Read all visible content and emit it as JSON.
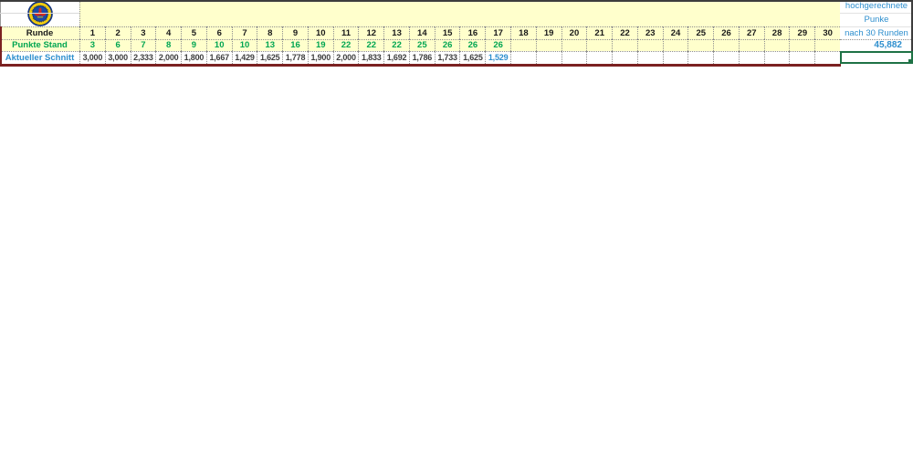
{
  "labels": {
    "runde": "Runde",
    "punkte_stand": "Punkte Stand",
    "aktueller_schnitt": "Aktueller Schnitt"
  },
  "table": {
    "rounds": [
      1,
      2,
      3,
      4,
      5,
      6,
      7,
      8,
      9,
      10,
      11,
      12,
      13,
      14,
      15,
      16,
      17,
      18,
      19,
      20,
      21,
      22,
      23,
      24,
      25,
      26,
      27,
      28,
      29,
      30
    ],
    "punkte_stand": [
      "3",
      "6",
      "7",
      "8",
      "9",
      "10",
      "10",
      "13",
      "16",
      "19",
      "22",
      "22",
      "22",
      "25",
      "26",
      "26",
      "26",
      "",
      "",
      "",
      "",
      "",
      "",
      "",
      "",
      "",
      "",
      "",
      "",
      ""
    ],
    "aktueller_schnitt": [
      "3,000",
      "3,000",
      "2,333",
      "2,000",
      "1,800",
      "1,667",
      "1,429",
      "1,625",
      "1,778",
      "1,900",
      "2,000",
      "1,833",
      "1,692",
      "1,786",
      "1,733",
      "1,625",
      "1,529",
      "",
      "",
      "",
      "",
      "",
      "",
      "",
      "",
      "",
      "",
      "",
      "",
      ""
    ],
    "current_round": 17
  },
  "projection": {
    "line1": "hochgerechnete",
    "line2": "Punke",
    "line3": "nach 30 Runden",
    "value": "45,882"
  },
  "colors": {
    "cell-yellow": "#FFFFCC",
    "green": "#00A551",
    "blue": "#2E8FCE",
    "value-gray": "#3F3F3F",
    "border-red": "#7B2121",
    "selection-green": "#1E7245"
  }
}
